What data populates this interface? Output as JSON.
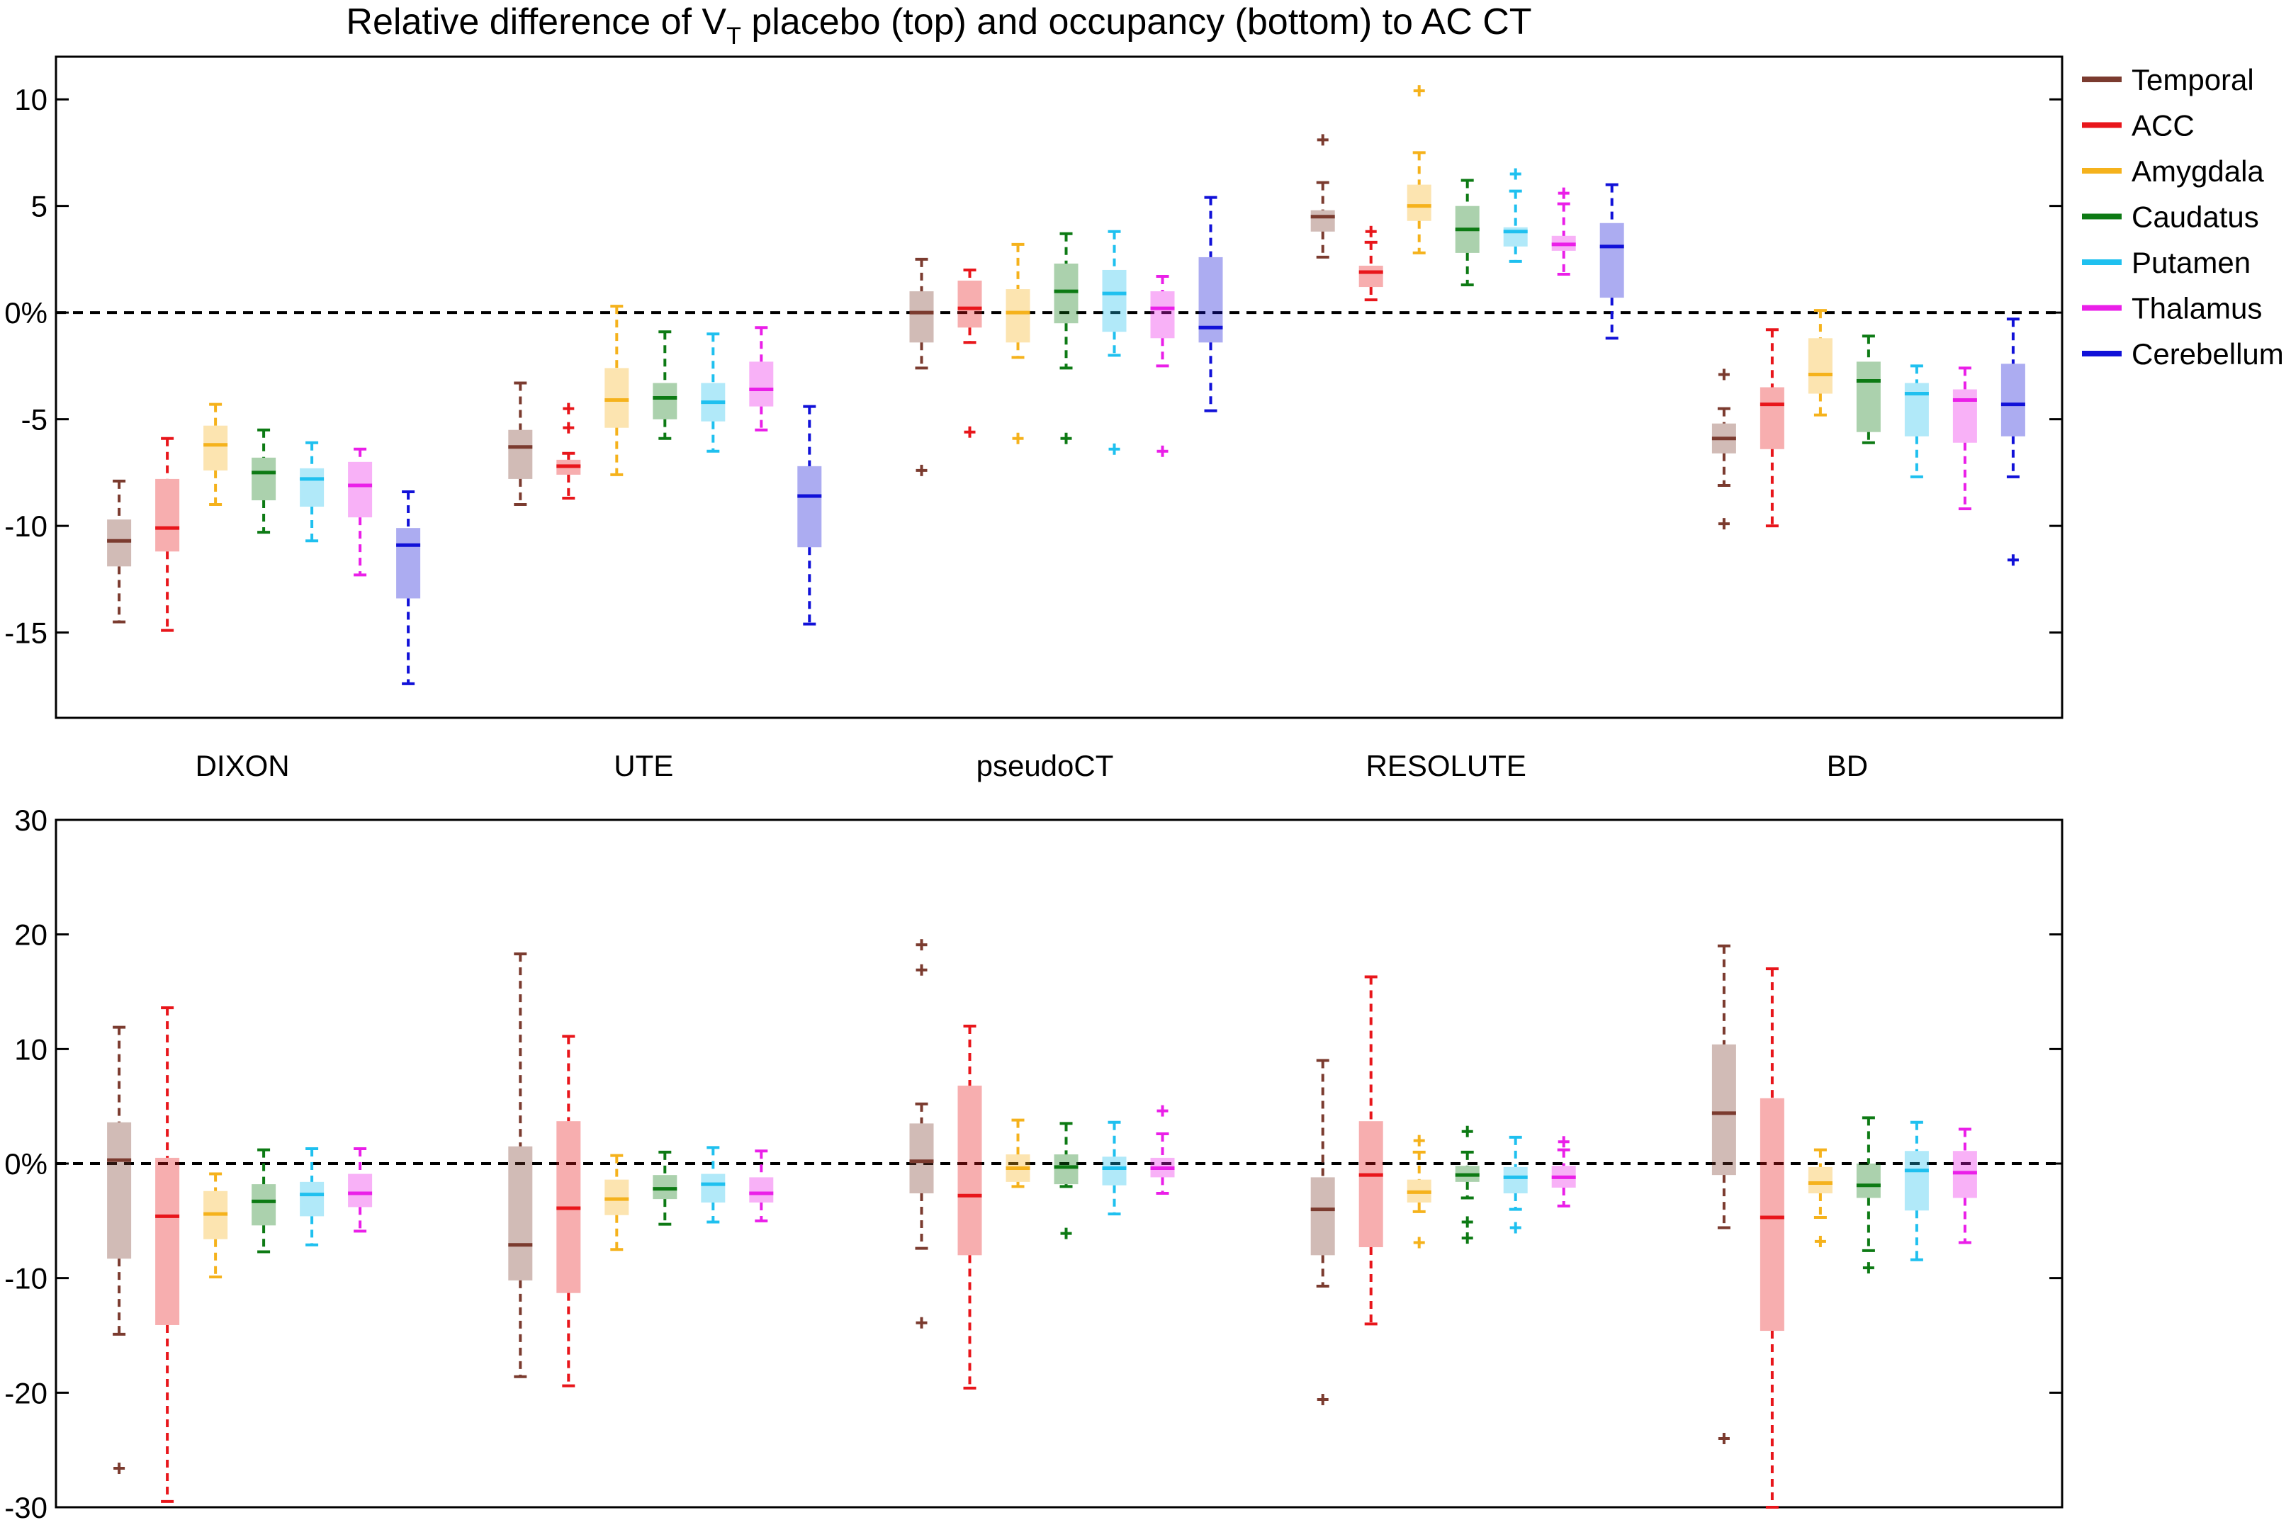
{
  "figure": {
    "title_main": "Relative difference of V",
    "title_sub": "T",
    "title_rest": " placebo (top) and occupancy (bottom) to AC CT"
  },
  "regions": [
    {
      "name": "Temporal",
      "color": "#7b3b2f"
    },
    {
      "name": "ACC",
      "color": "#e8161b"
    },
    {
      "name": "Amygdala",
      "color": "#f5b21c"
    },
    {
      "name": "Caudatus",
      "color": "#0d7a14"
    },
    {
      "name": "Putamen",
      "color": "#1fc0ef"
    },
    {
      "name": "Thalamus",
      "color": "#ea1fe8"
    },
    {
      "name": "Cerebellum",
      "color": "#1111d8"
    }
  ],
  "methods": [
    "DIXON",
    "UTE",
    "pseudoCT",
    "RESOLUTE",
    "BD"
  ],
  "chart_data": [
    {
      "type": "box",
      "panel": "top",
      "title": "Relative difference of VT placebo (top) and occupancy (bottom) to AC CT",
      "ylim": [
        -19,
        12
      ],
      "yticks": [
        10,
        5,
        0,
        -5,
        -10,
        -15
      ],
      "ytick_labels": [
        "10",
        "5",
        "0%",
        "-5",
        "-10",
        "-15"
      ],
      "reference_line": 0,
      "categories": [
        "DIXON",
        "UTE",
        "pseudoCT",
        "RESOLUTE",
        "BD"
      ],
      "series": [
        {
          "name": "Temporal",
          "boxes": [
            {
              "q1": -11.9,
              "median": -10.7,
              "q3": -9.7,
              "whisker_low": -14.5,
              "whisker_high": -7.9,
              "outliers": []
            },
            {
              "q1": -7.8,
              "median": -6.3,
              "q3": -5.5,
              "whisker_low": -9.0,
              "whisker_high": -3.3,
              "outliers": []
            },
            {
              "q1": -1.4,
              "median": 0.0,
              "q3": 1.0,
              "whisker_low": -2.6,
              "whisker_high": 2.5,
              "outliers": [
                -7.4
              ]
            },
            {
              "q1": 3.8,
              "median": 4.5,
              "q3": 4.8,
              "whisker_low": 2.6,
              "whisker_high": 6.1,
              "outliers": [
                8.1
              ]
            },
            {
              "q1": -6.6,
              "median": -5.9,
              "q3": -5.2,
              "whisker_low": -8.1,
              "whisker_high": -4.5,
              "outliers": [
                -2.9,
                -9.9
              ]
            }
          ]
        },
        {
          "name": "ACC",
          "boxes": [
            {
              "q1": -11.2,
              "median": -10.1,
              "q3": -7.8,
              "whisker_low": -14.9,
              "whisker_high": -5.9,
              "outliers": []
            },
            {
              "q1": -7.6,
              "median": -7.2,
              "q3": -6.9,
              "whisker_low": -8.7,
              "whisker_high": -6.6,
              "outliers": [
                -4.5,
                -5.4
              ]
            },
            {
              "q1": -0.7,
              "median": 0.2,
              "q3": 1.5,
              "whisker_low": -1.4,
              "whisker_high": 2.0,
              "outliers": [
                -5.6
              ]
            },
            {
              "q1": 1.2,
              "median": 1.9,
              "q3": 2.2,
              "whisker_low": 0.6,
              "whisker_high": 3.3,
              "outliers": [
                3.8
              ]
            },
            {
              "q1": -6.4,
              "median": -4.3,
              "q3": -3.5,
              "whisker_low": -10.0,
              "whisker_high": -0.8,
              "outliers": []
            }
          ]
        },
        {
          "name": "Amygdala",
          "boxes": [
            {
              "q1": -7.4,
              "median": -6.2,
              "q3": -5.3,
              "whisker_low": -9.0,
              "whisker_high": -4.3,
              "outliers": []
            },
            {
              "q1": -5.4,
              "median": -4.1,
              "q3": -2.6,
              "whisker_low": -7.6,
              "whisker_high": 0.3,
              "outliers": []
            },
            {
              "q1": -1.4,
              "median": 0.0,
              "q3": 1.1,
              "whisker_low": -2.1,
              "whisker_high": 3.2,
              "outliers": [
                -5.9
              ]
            },
            {
              "q1": 4.3,
              "median": 5.0,
              "q3": 6.0,
              "whisker_low": 2.8,
              "whisker_high": 7.5,
              "outliers": [
                10.4
              ]
            },
            {
              "q1": -3.8,
              "median": -2.9,
              "q3": -1.2,
              "whisker_low": -4.8,
              "whisker_high": 0.1,
              "outliers": []
            }
          ]
        },
        {
          "name": "Caudatus",
          "boxes": [
            {
              "q1": -8.8,
              "median": -7.5,
              "q3": -6.8,
              "whisker_low": -10.3,
              "whisker_high": -5.5,
              "outliers": []
            },
            {
              "q1": -5.0,
              "median": -4.0,
              "q3": -3.3,
              "whisker_low": -5.9,
              "whisker_high": -0.9,
              "outliers": []
            },
            {
              "q1": -0.5,
              "median": 1.0,
              "q3": 2.3,
              "whisker_low": -2.6,
              "whisker_high": 3.7,
              "outliers": [
                -5.9
              ]
            },
            {
              "q1": 2.8,
              "median": 3.9,
              "q3": 5.0,
              "whisker_low": 1.3,
              "whisker_high": 6.2,
              "outliers": []
            },
            {
              "q1": -5.6,
              "median": -3.2,
              "q3": -2.3,
              "whisker_low": -6.1,
              "whisker_high": -1.1,
              "outliers": []
            }
          ]
        },
        {
          "name": "Putamen",
          "boxes": [
            {
              "q1": -9.1,
              "median": -7.8,
              "q3": -7.3,
              "whisker_low": -10.7,
              "whisker_high": -6.1,
              "outliers": []
            },
            {
              "q1": -5.1,
              "median": -4.2,
              "q3": -3.3,
              "whisker_low": -6.5,
              "whisker_high": -1.0,
              "outliers": []
            },
            {
              "q1": -0.9,
              "median": 0.9,
              "q3": 2.0,
              "whisker_low": -2.0,
              "whisker_high": 3.8,
              "outliers": [
                -6.4
              ]
            },
            {
              "q1": 3.1,
              "median": 3.8,
              "q3": 4.0,
              "whisker_low": 2.4,
              "whisker_high": 5.7,
              "outliers": [
                6.5
              ]
            },
            {
              "q1": -5.8,
              "median": -3.8,
              "q3": -3.3,
              "whisker_low": -7.7,
              "whisker_high": -2.5,
              "outliers": []
            }
          ]
        },
        {
          "name": "Thalamus",
          "boxes": [
            {
              "q1": -9.6,
              "median": -8.1,
              "q3": -7.0,
              "whisker_low": -12.3,
              "whisker_high": -6.4,
              "outliers": []
            },
            {
              "q1": -4.4,
              "median": -3.6,
              "q3": -2.3,
              "whisker_low": -5.5,
              "whisker_high": -0.7,
              "outliers": []
            },
            {
              "q1": -1.2,
              "median": 0.2,
              "q3": 1.0,
              "whisker_low": -2.5,
              "whisker_high": 1.7,
              "outliers": [
                -6.5
              ]
            },
            {
              "q1": 2.9,
              "median": 3.2,
              "q3": 3.6,
              "whisker_low": 1.8,
              "whisker_high": 5.1,
              "outliers": [
                5.6
              ]
            },
            {
              "q1": -6.1,
              "median": -4.1,
              "q3": -3.6,
              "whisker_low": -9.2,
              "whisker_high": -2.6,
              "outliers": []
            }
          ]
        },
        {
          "name": "Cerebellum",
          "boxes": [
            {
              "q1": -13.4,
              "median": -10.9,
              "q3": -10.1,
              "whisker_low": -17.4,
              "whisker_high": -8.4,
              "outliers": []
            },
            {
              "q1": -11.0,
              "median": -8.6,
              "q3": -7.2,
              "whisker_low": -14.6,
              "whisker_high": -4.4,
              "outliers": []
            },
            {
              "q1": -1.4,
              "median": -0.7,
              "q3": 2.6,
              "whisker_low": -4.6,
              "whisker_high": 5.4,
              "outliers": []
            },
            {
              "q1": 0.7,
              "median": 3.1,
              "q3": 4.2,
              "whisker_low": -1.2,
              "whisker_high": 6.0,
              "outliers": []
            },
            {
              "q1": -5.8,
              "median": -4.3,
              "q3": -2.4,
              "whisker_low": -7.7,
              "whisker_high": -0.3,
              "outliers": [
                -11.6
              ]
            }
          ]
        }
      ]
    },
    {
      "type": "box",
      "panel": "bottom",
      "ylim": [
        -30,
        30
      ],
      "yticks": [
        30,
        20,
        10,
        0,
        -10,
        -20,
        -30
      ],
      "ytick_labels": [
        "30",
        "20",
        "10",
        "0%",
        "-10",
        "-20",
        "-30"
      ],
      "reference_line": 0,
      "categories": [
        "DIXON",
        "UTE",
        "pseudoCT",
        "RESOLUTE",
        "BD"
      ],
      "series": [
        {
          "name": "Temporal",
          "boxes": [
            {
              "q1": -8.3,
              "median": 0.3,
              "q3": 3.6,
              "whisker_low": -14.9,
              "whisker_high": 11.9,
              "outliers": [
                -26.6
              ]
            },
            {
              "q1": -10.2,
              "median": -7.1,
              "q3": 1.5,
              "whisker_low": -18.6,
              "whisker_high": 18.3,
              "outliers": []
            },
            {
              "q1": -2.6,
              "median": 0.2,
              "q3": 3.5,
              "whisker_low": -7.4,
              "whisker_high": 5.2,
              "outliers": [
                19.1,
                16.9,
                -13.9
              ]
            },
            {
              "q1": -8.0,
              "median": -4.0,
              "q3": -1.2,
              "whisker_low": -10.7,
              "whisker_high": 9.0,
              "outliers": [
                -20.6
              ]
            },
            {
              "q1": -1.0,
              "median": 4.4,
              "q3": 10.4,
              "whisker_low": -5.6,
              "whisker_high": 19.0,
              "outliers": [
                -24.0
              ]
            }
          ]
        },
        {
          "name": "ACC",
          "boxes": [
            {
              "q1": -14.1,
              "median": -4.6,
              "q3": 0.5,
              "whisker_low": -29.5,
              "whisker_high": 13.6,
              "outliers": []
            },
            {
              "q1": -11.3,
              "median": -3.9,
              "q3": 3.7,
              "whisker_low": -19.4,
              "whisker_high": 11.1,
              "outliers": []
            },
            {
              "q1": -8.0,
              "median": -2.8,
              "q3": 6.8,
              "whisker_low": -19.6,
              "whisker_high": 12.0,
              "outliers": []
            },
            {
              "q1": -7.3,
              "median": -1.0,
              "q3": 3.7,
              "whisker_low": -14.0,
              "whisker_high": 16.3,
              "outliers": []
            },
            {
              "q1": -14.6,
              "median": -4.7,
              "q3": 5.7,
              "whisker_low": -30.0,
              "whisker_high": 17.0,
              "outliers": []
            }
          ]
        },
        {
          "name": "Amygdala",
          "boxes": [
            {
              "q1": -6.6,
              "median": -4.4,
              "q3": -2.4,
              "whisker_low": -9.9,
              "whisker_high": -0.9,
              "outliers": []
            },
            {
              "q1": -4.5,
              "median": -3.1,
              "q3": -1.4,
              "whisker_low": -7.5,
              "whisker_high": 0.7,
              "outliers": []
            },
            {
              "q1": -1.6,
              "median": -0.4,
              "q3": 0.8,
              "whisker_low": -2.0,
              "whisker_high": 3.8,
              "outliers": []
            },
            {
              "q1": -3.4,
              "median": -2.5,
              "q3": -1.4,
              "whisker_low": -4.2,
              "whisker_high": 1.0,
              "outliers": [
                2.0,
                -6.9
              ]
            },
            {
              "q1": -2.6,
              "median": -1.7,
              "q3": -0.3,
              "whisker_low": -4.7,
              "whisker_high": 1.2,
              "outliers": [
                -6.8
              ]
            }
          ]
        },
        {
          "name": "Caudatus",
          "boxes": [
            {
              "q1": -5.4,
              "median": -3.3,
              "q3": -1.8,
              "whisker_low": -7.7,
              "whisker_high": 1.2,
              "outliers": []
            },
            {
              "q1": -3.1,
              "median": -2.2,
              "q3": -1.0,
              "whisker_low": -5.3,
              "whisker_high": 1.0,
              "outliers": []
            },
            {
              "q1": -1.8,
              "median": -0.3,
              "q3": 0.8,
              "whisker_low": -2.0,
              "whisker_high": 3.5,
              "outliers": [
                -6.1
              ]
            },
            {
              "q1": -1.6,
              "median": -1.0,
              "q3": -0.2,
              "whisker_low": -3.0,
              "whisker_high": 1.0,
              "outliers": [
                2.8,
                -5.1,
                -6.5
              ]
            },
            {
              "q1": -3.0,
              "median": -1.9,
              "q3": 0.0,
              "whisker_low": -7.6,
              "whisker_high": 4.0,
              "outliers": [
                -9.1
              ]
            }
          ]
        },
        {
          "name": "Putamen",
          "boxes": [
            {
              "q1": -4.6,
              "median": -2.7,
              "q3": -1.6,
              "whisker_low": -7.1,
              "whisker_high": 1.3,
              "outliers": []
            },
            {
              "q1": -3.4,
              "median": -1.8,
              "q3": -0.9,
              "whisker_low": -5.1,
              "whisker_high": 1.4,
              "outliers": []
            },
            {
              "q1": -1.9,
              "median": -0.4,
              "q3": 0.6,
              "whisker_low": -4.4,
              "whisker_high": 3.6,
              "outliers": []
            },
            {
              "q1": -2.6,
              "median": -1.2,
              "q3": -0.3,
              "whisker_low": -4.0,
              "whisker_high": 2.3,
              "outliers": [
                -5.6
              ]
            },
            {
              "q1": -4.1,
              "median": -0.6,
              "q3": 1.1,
              "whisker_low": -8.4,
              "whisker_high": 3.6,
              "outliers": []
            }
          ]
        },
        {
          "name": "Thalamus",
          "boxes": [
            {
              "q1": -3.8,
              "median": -2.6,
              "q3": -0.9,
              "whisker_low": -5.9,
              "whisker_high": 1.3,
              "outliers": []
            },
            {
              "q1": -3.4,
              "median": -2.6,
              "q3": -1.2,
              "whisker_low": -5.0,
              "whisker_high": 1.1,
              "outliers": []
            },
            {
              "q1": -1.2,
              "median": -0.4,
              "q3": 0.5,
              "whisker_low": -2.6,
              "whisker_high": 2.6,
              "outliers": [
                4.6
              ]
            },
            {
              "q1": -2.1,
              "median": -1.2,
              "q3": -0.2,
              "whisker_low": -3.7,
              "whisker_high": 1.2,
              "outliers": [
                1.9
              ]
            },
            {
              "q1": -3.0,
              "median": -0.8,
              "q3": 1.1,
              "whisker_low": -6.9,
              "whisker_high": 3.0,
              "outliers": []
            }
          ]
        }
      ]
    }
  ]
}
